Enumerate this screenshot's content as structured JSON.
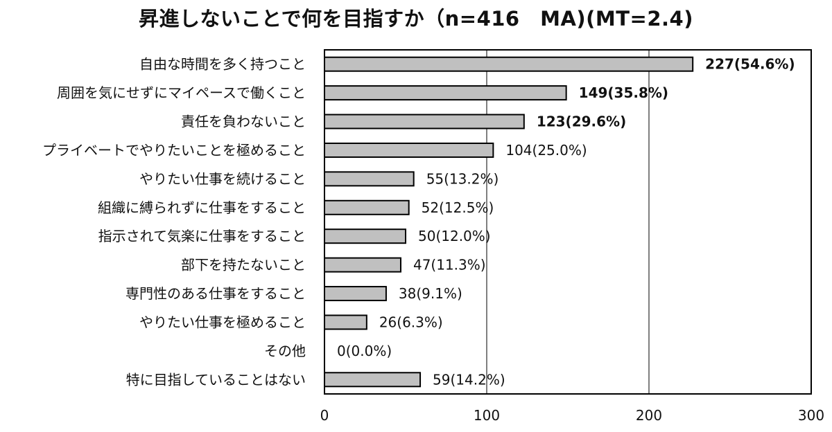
{
  "title": "昇進しないことで何を目指すか（n=416　MA)(MT=2.4)",
  "chart_data": {
    "type": "bar",
    "orientation": "horizontal",
    "title": "昇進しないことで何を目指すか（n=416　MA)(MT=2.4)",
    "xlabel": "",
    "ylabel": "",
    "xlim": [
      0,
      300
    ],
    "x_ticks": [
      0,
      100,
      200,
      300
    ],
    "x_tick_labels": [
      "0",
      "100",
      "200",
      "300"
    ],
    "grid": true,
    "legend": "none",
    "bar_color": "#c0c0c0",
    "bar_edge_color": "#000000",
    "categories": [
      "自由な時間を多く持つこと",
      "周囲を気にせずにマイペースで働くこと",
      "責任を負わないこと",
      "プライベートでやりたいことを極めること",
      "やりたい仕事を続けること",
      "組織に縛られずに仕事をすること",
      "指示されて気楽に仕事をすること",
      "部下を持たないこと",
      "専門性のある仕事をすること",
      "やりたい仕事を極めること",
      "その他",
      "特に目指していることはない"
    ],
    "values": [
      227,
      149,
      123,
      104,
      55,
      52,
      50,
      47,
      38,
      26,
      0,
      59
    ],
    "percentages": [
      54.6,
      35.8,
      29.6,
      25.0,
      13.2,
      12.5,
      12.0,
      11.3,
      9.1,
      6.3,
      0.0,
      14.2
    ],
    "data_labels": [
      "227(54.6%)",
      "149(35.8%)",
      "123(29.6%)",
      "104(25.0%)",
      "55(13.2%)",
      "52(12.5%)",
      "50(12.0%)",
      "47(11.3%)",
      "38(9.1%)",
      "26(6.3%)",
      "0(0.0%)",
      "59(14.2%)"
    ],
    "bold_labels": [
      true,
      true,
      true,
      false,
      false,
      false,
      false,
      false,
      false,
      false,
      false,
      false
    ]
  }
}
